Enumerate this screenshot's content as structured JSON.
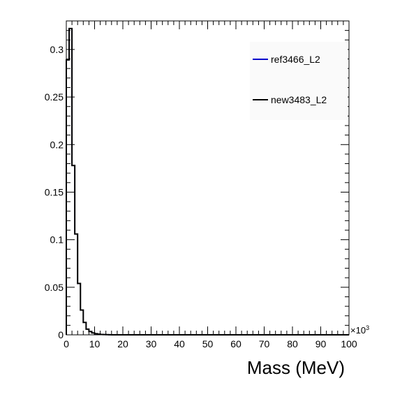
{
  "chart_data": {
    "type": "line",
    "title": "",
    "xlabel": "Mass (MeV)",
    "ylabel": "",
    "x_multiplier": "×10",
    "x_multiplier_exp": "3",
    "xlim": [
      0,
      100
    ],
    "ylim": [
      0,
      0.33
    ],
    "x_ticks": [
      "0",
      "10",
      "20",
      "30",
      "40",
      "50",
      "60",
      "70",
      "80",
      "90",
      "100"
    ],
    "y_ticks": [
      "0",
      "0.05",
      "0.1",
      "0.15",
      "0.2",
      "0.25",
      "0.3"
    ],
    "grid": false,
    "legend_position": "top-right",
    "bin_width": 1,
    "series": [
      {
        "name": "ref3466_L2",
        "color": "#0000cc",
        "values": [
          0.289,
          0.322,
          0.178,
          0.106,
          0.054,
          0.026,
          0.013,
          0.006,
          0.0035,
          0.002,
          0.0012,
          0.0007,
          0.0004,
          0.0003,
          0.0002,
          0.0001
        ]
      },
      {
        "name": "new3483_L2",
        "color": "#000000",
        "values": [
          0.289,
          0.322,
          0.178,
          0.106,
          0.054,
          0.026,
          0.013,
          0.006,
          0.0035,
          0.002,
          0.0012,
          0.0007,
          0.0004,
          0.0003,
          0.0002,
          0.0001
        ]
      }
    ]
  }
}
